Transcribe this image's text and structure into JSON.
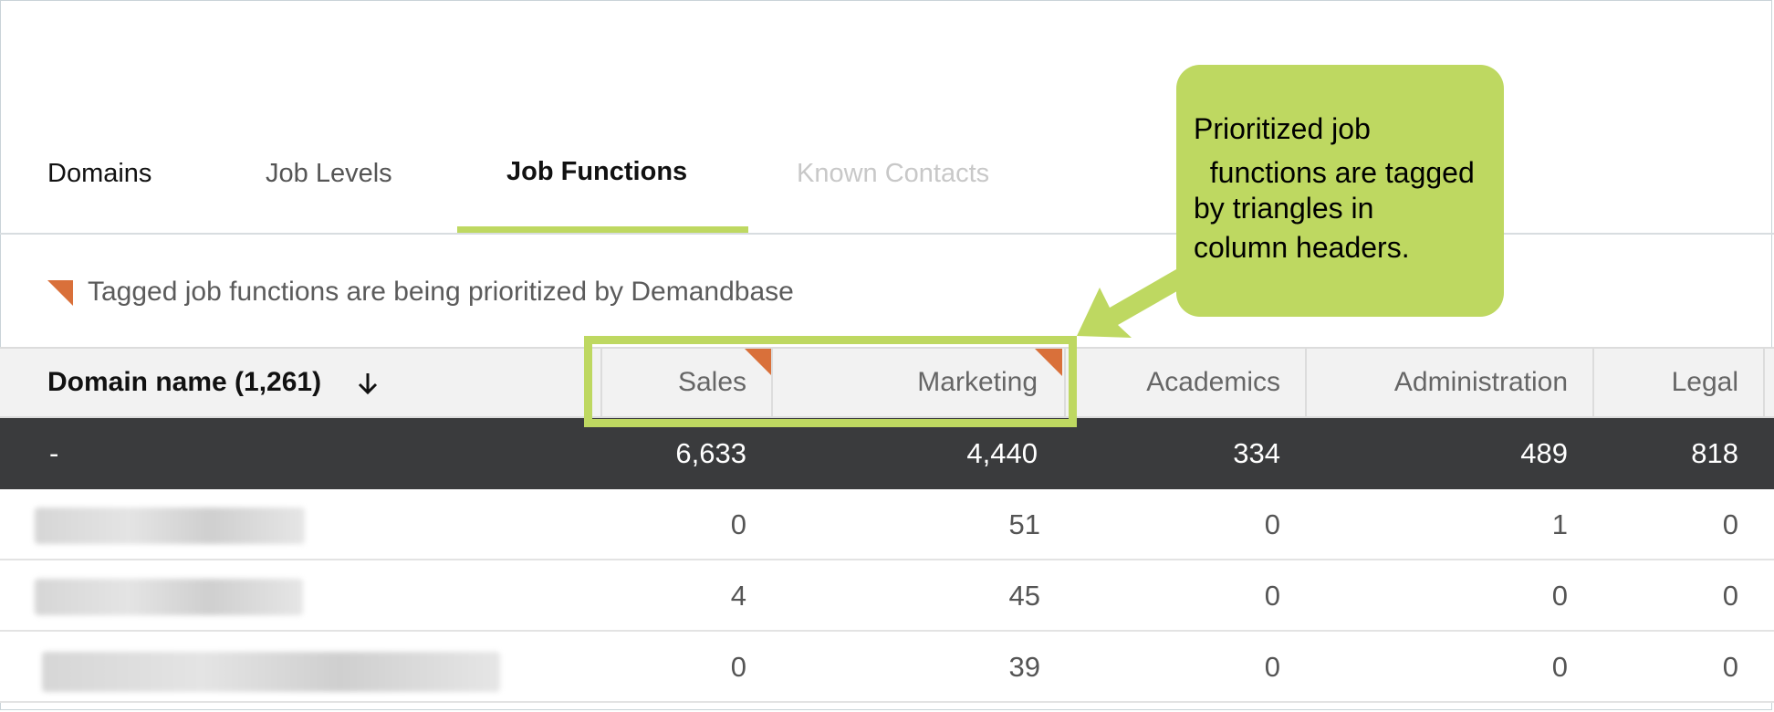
{
  "tabs": [
    {
      "label": "Domains",
      "state": "default"
    },
    {
      "label": "Job Levels",
      "state": "default"
    },
    {
      "label": "Job Functions",
      "state": "active"
    },
    {
      "label": "Known Contacts",
      "state": "disabled"
    }
  ],
  "legend": {
    "icon": "orange-triangle-icon",
    "text": "Tagged job functions are being prioritized by Demandbase"
  },
  "table": {
    "header": {
      "domain_label": "Domain name (1,261)",
      "sort_icon": "arrow-down-icon",
      "columns": [
        {
          "label": "Sales",
          "prioritized": true
        },
        {
          "label": "Marketing",
          "prioritized": true
        },
        {
          "label": "Academics",
          "prioritized": false
        },
        {
          "label": "Administration",
          "prioritized": false
        },
        {
          "label": "Legal",
          "prioritized": false
        }
      ]
    },
    "total_row": {
      "label": "-",
      "values": [
        "6,633",
        "4,440",
        "334",
        "489",
        "818"
      ]
    },
    "rows": [
      {
        "domain": "",
        "values": [
          "0",
          "51",
          "0",
          "1",
          "0"
        ]
      },
      {
        "domain": "",
        "values": [
          "4",
          "45",
          "0",
          "0",
          "0"
        ]
      },
      {
        "domain": "",
        "values": [
          "0",
          "39",
          "0",
          "0",
          "0"
        ]
      }
    ]
  },
  "callout": {
    "lines": [
      "Prioritized job",
      "  functions are tagged",
      "by triangles in",
      "column headers."
    ]
  },
  "colors": {
    "accent_green": "#bed861",
    "priority_orange": "#d9703a",
    "total_row_bg": "#3a3b3d",
    "header_bg": "#f2f2f2"
  }
}
